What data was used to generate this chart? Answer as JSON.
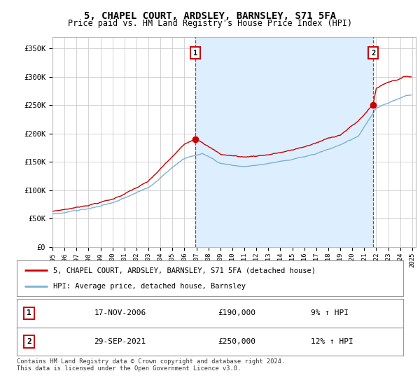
{
  "title": "5, CHAPEL COURT, ARDSLEY, BARNSLEY, S71 5FA",
  "subtitle": "Price paid vs. HM Land Registry's House Price Index (HPI)",
  "ylabel_ticks": [
    "£0",
    "£50K",
    "£100K",
    "£150K",
    "£200K",
    "£250K",
    "£300K",
    "£350K"
  ],
  "ylim": [
    0,
    370000
  ],
  "yticks": [
    0,
    50000,
    100000,
    150000,
    200000,
    250000,
    300000,
    350000
  ],
  "red_color": "#cc0000",
  "blue_color": "#7ab0d4",
  "shade_color": "#ddeeff",
  "marker1_year": 2006.9,
  "marker1_value": 190000,
  "marker2_year": 2021.75,
  "marker2_value": 250000,
  "legend_line1": "5, CHAPEL COURT, ARDSLEY, BARNSLEY, S71 5FA (detached house)",
  "legend_line2": "HPI: Average price, detached house, Barnsley",
  "table_row1": [
    "1",
    "17-NOV-2006",
    "£190,000",
    "9% ↑ HPI"
  ],
  "table_row2": [
    "2",
    "29-SEP-2021",
    "£250,000",
    "12% ↑ HPI"
  ],
  "footer": "Contains HM Land Registry data © Crown copyright and database right 2024.\nThis data is licensed under the Open Government Licence v3.0.",
  "background_color": "#ffffff",
  "grid_color": "#cccccc"
}
